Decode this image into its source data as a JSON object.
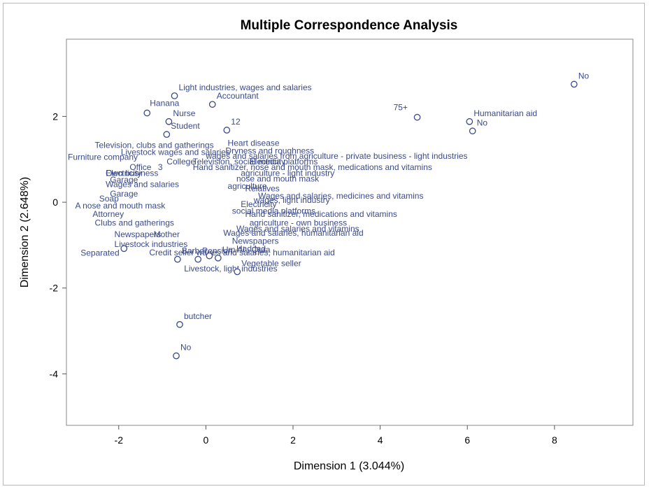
{
  "chart_data": {
    "type": "scatter",
    "title": "Multiple Correspondence Analysis",
    "xlabel": "Dimension 1 (3.044%)",
    "ylabel": "Dimension 2 (2.648%)",
    "xlim": [
      -3.2,
      9.8
    ],
    "ylim": [
      -5.2,
      3.8
    ],
    "xticks": [
      -2,
      0,
      2,
      4,
      6,
      8
    ],
    "yticks": [
      -4,
      -2,
      0,
      2
    ],
    "grid": false,
    "legend": "none",
    "point_color": "#3a4a8a",
    "text_color": "#3a4a8a",
    "points": [
      {
        "x": 8.45,
        "y": 2.75,
        "label": "No"
      },
      {
        "x": 4.85,
        "y": 1.98,
        "label": "75+"
      },
      {
        "x": 6.05,
        "y": 1.88,
        "label": "Humanitarian aid"
      },
      {
        "x": 6.12,
        "y": 1.66,
        "label": "No"
      },
      {
        "x": -0.72,
        "y": 2.48,
        "label": "Light industries, wages and salaries"
      },
      {
        "x": 0.15,
        "y": 2.28,
        "label": "Accountant"
      },
      {
        "x": -1.35,
        "y": 2.08,
        "label": "Hanana"
      },
      {
        "x": -0.85,
        "y": 1.88,
        "label": "Nurse"
      },
      {
        "x": 0.48,
        "y": 1.68,
        "label": "12"
      },
      {
        "x": -0.9,
        "y": 1.58,
        "label": "Student"
      },
      {
        "x": -1.88,
        "y": -1.08,
        "label": "Separated"
      },
      {
        "x": -0.65,
        "y": -1.33,
        "label": "Barber"
      },
      {
        "x": -0.18,
        "y": -1.33,
        "label": "Pension"
      },
      {
        "x": 0.08,
        "y": -1.25,
        "label": ""
      },
      {
        "x": 0.28,
        "y": -1.3,
        "label": "Um Al , Qura"
      },
      {
        "x": 0.72,
        "y": -1.62,
        "label": "Vegetable seller"
      },
      {
        "x": -0.6,
        "y": -2.85,
        "label": "butcher"
      },
      {
        "x": -0.68,
        "y": -3.58,
        "label": "No"
      }
    ],
    "labels": [
      {
        "x": 0.5,
        "y": 1.38,
        "text": "Heart disease"
      },
      {
        "x": -2.55,
        "y": 1.33,
        "text": "Television, clubs and gatherings"
      },
      {
        "x": -1.95,
        "y": 1.17,
        "text": "Livestock wages and salaries"
      },
      {
        "x": 0.45,
        "y": 1.2,
        "text": "Dryness and roughness"
      },
      {
        "x": 0.0,
        "y": 1.08,
        "text": "wages and salaries from agriculture - private business - light industries"
      },
      {
        "x": -3.2,
        "y": 1.05,
        "text": "Furniture company"
      },
      {
        "x": -0.9,
        "y": 0.95,
        "text": "College"
      },
      {
        "x": -0.3,
        "y": 0.95,
        "text": "Television, social media platforms"
      },
      {
        "x": 1.0,
        "y": 0.95,
        "text": "Electricity"
      },
      {
        "x": -1.75,
        "y": 0.82,
        "text": "Office"
      },
      {
        "x": -1.1,
        "y": 0.82,
        "text": "3"
      },
      {
        "x": -0.3,
        "y": 0.82,
        "text": "Hand sanitizer, nose and mouth mask, medications and vitamins"
      },
      {
        "x": -2.3,
        "y": 0.68,
        "text": "Electricity"
      },
      {
        "x": -2.3,
        "y": 0.68,
        "text": "Own business"
      },
      {
        "x": 0.8,
        "y": 0.68,
        "text": "agriculture - light industry"
      },
      {
        "x": -2.2,
        "y": 0.52,
        "text": "Garage"
      },
      {
        "x": 0.7,
        "y": 0.55,
        "text": "nose and mouth mask"
      },
      {
        "x": -2.3,
        "y": 0.42,
        "text": "Wages and salaries"
      },
      {
        "x": 0.5,
        "y": 0.38,
        "text": "agriculture"
      },
      {
        "x": 0.9,
        "y": 0.32,
        "text": "Relatives"
      },
      {
        "x": -2.2,
        "y": 0.2,
        "text": "Garage"
      },
      {
        "x": 1.2,
        "y": 0.15,
        "text": "Wages and salaries, medicines and vitamins"
      },
      {
        "x": -2.45,
        "y": 0.08,
        "text": "Soap"
      },
      {
        "x": 1.1,
        "y": 0.05,
        "text": "wages, light industry"
      },
      {
        "x": -3.0,
        "y": -0.08,
        "text": "A nose and mouth mask"
      },
      {
        "x": 0.8,
        "y": -0.05,
        "text": "Electricity"
      },
      {
        "x": 0.6,
        "y": -0.2,
        "text": "social media platforms"
      },
      {
        "x": -2.6,
        "y": -0.28,
        "text": "Attorney"
      },
      {
        "x": 0.9,
        "y": -0.28,
        "text": "Hand sanitizer, medications and vitamins"
      },
      {
        "x": -2.55,
        "y": -0.48,
        "text": "Clubs and gatherings"
      },
      {
        "x": 1.0,
        "y": -0.48,
        "text": "agriculture - own business"
      },
      {
        "x": 0.7,
        "y": -0.62,
        "text": "Wages and salaries and vitamins"
      },
      {
        "x": 0.4,
        "y": -0.72,
        "text": "Wages and salaries, humanitarian aid"
      },
      {
        "x": -2.1,
        "y": -0.75,
        "text": "Newspapers"
      },
      {
        "x": -1.2,
        "y": -0.75,
        "text": "Mother"
      },
      {
        "x": 0.6,
        "y": -0.9,
        "text": "Newspapers"
      },
      {
        "x": -2.1,
        "y": -0.98,
        "text": "Livestock industries"
      },
      {
        "x": 0.7,
        "y": -1.08,
        "text": "Haddad"
      },
      {
        "x": -1.3,
        "y": -1.17,
        "text": "Credit seller wages and salaries, humanitarian aid"
      },
      {
        "x": -0.5,
        "y": -1.55,
        "text": "Livestock, light industries"
      }
    ]
  }
}
